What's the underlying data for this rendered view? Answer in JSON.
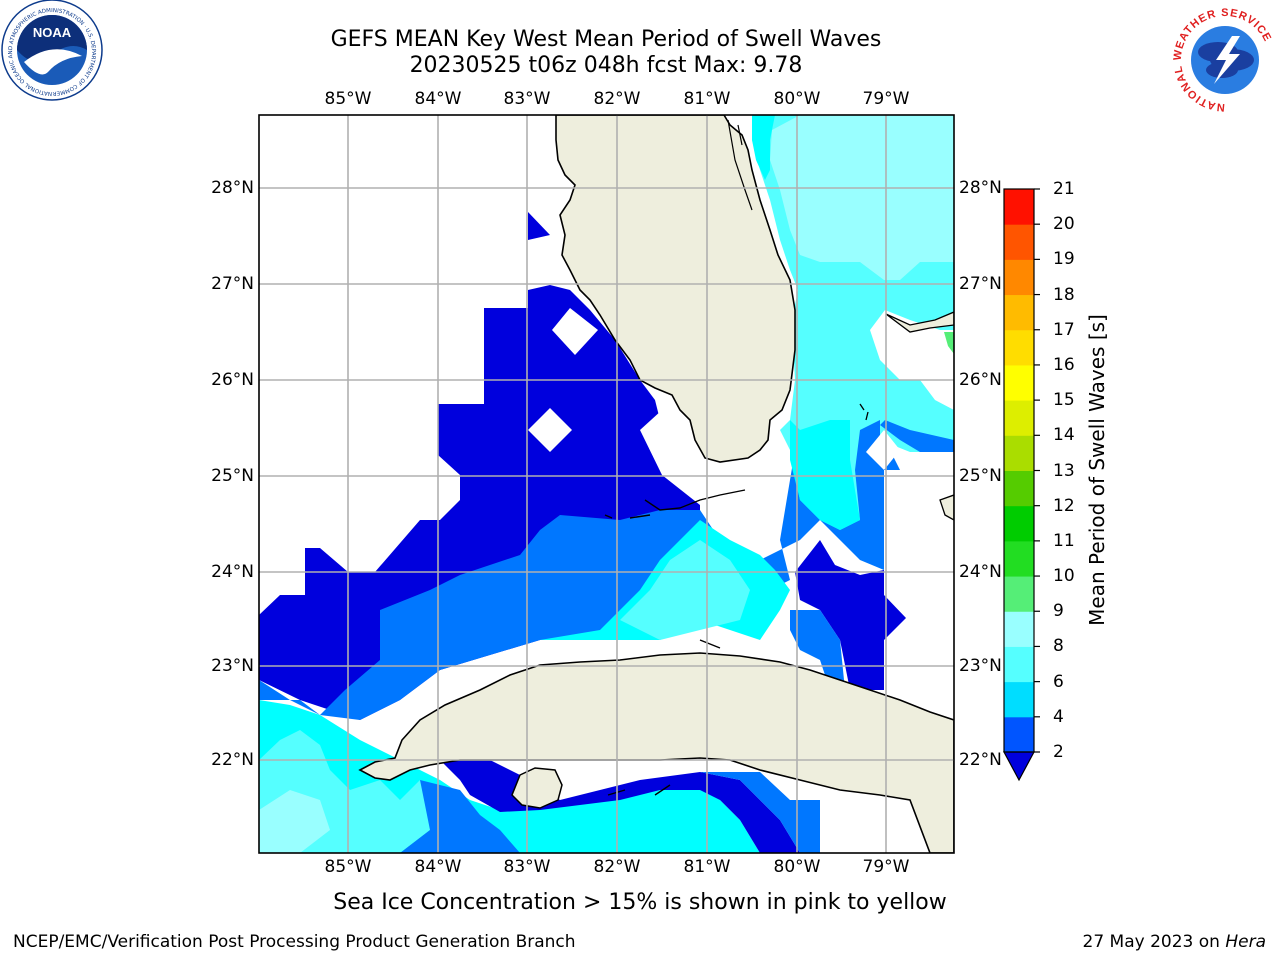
{
  "title_line1": "GEFS MEAN Key West Mean Period of Swell Waves",
  "title_line2": "20230525 t06z 048h fcst   Max: 9.78",
  "lon_labels": [
    "85°W",
    "84°W",
    "83°W",
    "82°W",
    "81°W",
    "80°W",
    "79°W"
  ],
  "lat_labels": [
    "28°N",
    "27°N",
    "26°N",
    "25°N",
    "24°N",
    "23°N",
    "22°N"
  ],
  "colorbar": {
    "title": "Mean Period of Swell Waves [s]",
    "ticks": [
      "2",
      "4",
      "6",
      "8",
      "9",
      "10",
      "11",
      "12",
      "13",
      "14",
      "15",
      "16",
      "17",
      "18",
      "19",
      "20",
      "21"
    ],
    "colors": [
      "#0055ff",
      "#00ddff",
      "#55ffff",
      "#99ffff",
      "#55ee77",
      "#22dd22",
      "#00cc00",
      "#55cc00",
      "#aadd00",
      "#ddee00",
      "#ffff00",
      "#ffdd00",
      "#ffbb00",
      "#ff8800",
      "#ff5500",
      "#ff1100"
    ],
    "extend_min_color": "#0000dd"
  },
  "sea_ice_note": "Sea Ice Concentration > 15% is shown in pink to yellow",
  "footer_left": "NCEP/EMC/Verification Post Processing Product Generation Branch",
  "footer_date": "27 May 2023 on ",
  "footer_host": "Hera",
  "logos": {
    "noaa": "NOAA",
    "noaa_ring": "NATIONAL OCEANIC AND ATMOSPHERIC ADMINISTRATION · U.S. DEPARTMENT OF COMMERCE",
    "nws": "NATIONAL WEATHER SERVICE"
  },
  "map_colors": {
    "land": "#eeeedd",
    "coast": "#000000",
    "grid": "#b0b0b0",
    "level_2_4": "#0000dd",
    "level_4_6": "#0077ff",
    "level_6_8": "#00ffff",
    "level_8_9": "#55ffff",
    "level_9_10": "#99ffff",
    "level_10_11": "#55ee77"
  }
}
